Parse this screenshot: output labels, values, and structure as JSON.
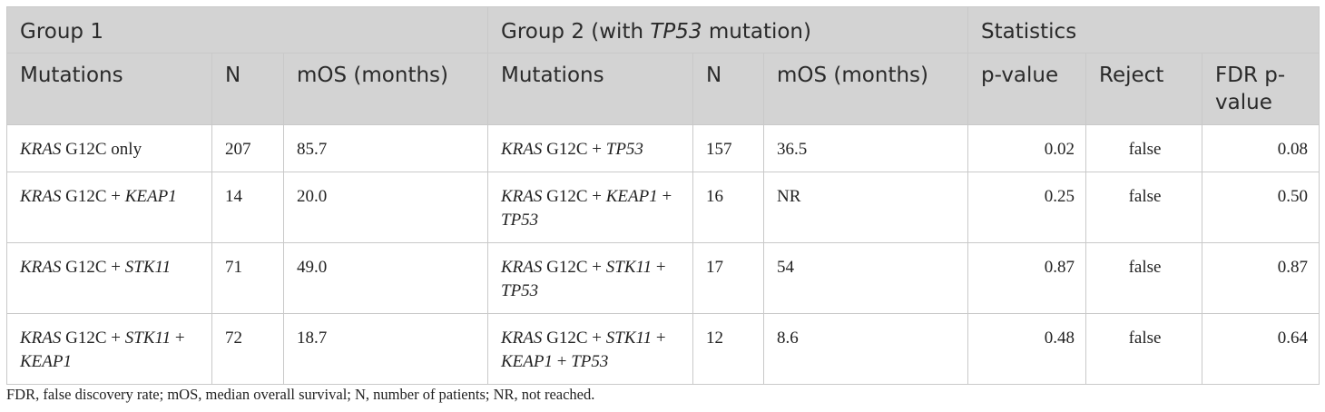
{
  "table": {
    "group_headers": [
      {
        "label": "Group 1",
        "italic_part": "",
        "suffix": ""
      },
      {
        "label": "Group 2 (with ",
        "italic_part": "TP53",
        "suffix": " mutation)"
      },
      {
        "label": "Statistics",
        "italic_part": "",
        "suffix": ""
      }
    ],
    "columns": [
      "Mutations",
      "N",
      "mOS (months)",
      "Mutations",
      "N",
      "mOS (months)",
      "p-value",
      "Reject",
      "FDR p-value"
    ],
    "rows": [
      {
        "g1_parts": [
          {
            "t": "KRAS",
            "i": true
          },
          {
            "t": " G12C only",
            "i": false
          }
        ],
        "g1_n": "207",
        "g1_mos": "85.7",
        "g2_parts": [
          {
            "t": "KRAS",
            "i": true
          },
          {
            "t": " G12C + ",
            "i": false
          },
          {
            "t": "TP53",
            "i": true
          }
        ],
        "g2_n": "157",
        "g2_mos": "36.5",
        "p": "0.02",
        "reject": "false",
        "fdr": "0.08"
      },
      {
        "g1_parts": [
          {
            "t": "KRAS",
            "i": true
          },
          {
            "t": " G12C + ",
            "i": false
          },
          {
            "t": "KEAP1",
            "i": true
          }
        ],
        "g1_n": "14",
        "g1_mos": "20.0",
        "g2_parts": [
          {
            "t": "KRAS",
            "i": true
          },
          {
            "t": " G12C + ",
            "i": false
          },
          {
            "t": "KEAP1",
            "i": true
          },
          {
            "t": " + ",
            "i": false
          },
          {
            "t": "TP53",
            "i": true
          }
        ],
        "g2_n": "16",
        "g2_mos": "NR",
        "p": "0.25",
        "reject": "false",
        "fdr": "0.50"
      },
      {
        "g1_parts": [
          {
            "t": "KRAS",
            "i": true
          },
          {
            "t": " G12C + ",
            "i": false
          },
          {
            "t": "STK11",
            "i": true
          }
        ],
        "g1_n": "71",
        "g1_mos": "49.0",
        "g2_parts": [
          {
            "t": "KRAS",
            "i": true
          },
          {
            "t": " G12C + ",
            "i": false
          },
          {
            "t": "STK11",
            "i": true
          },
          {
            "t": " + ",
            "i": false
          },
          {
            "t": "TP53",
            "i": true
          }
        ],
        "g2_n": "17",
        "g2_mos": "54",
        "p": "0.87",
        "reject": "false",
        "fdr": "0.87"
      },
      {
        "g1_parts": [
          {
            "t": "KRAS",
            "i": true
          },
          {
            "t": " G12C + ",
            "i": false
          },
          {
            "t": "STK11",
            "i": true
          },
          {
            "t": " + ",
            "i": false
          },
          {
            "t": "KEAP1",
            "i": true
          }
        ],
        "g1_n": "72",
        "g1_mos": "18.7",
        "g2_parts": [
          {
            "t": "KRAS",
            "i": true
          },
          {
            "t": " G12C + ",
            "i": false
          },
          {
            "t": "STK11",
            "i": true
          },
          {
            "t": " + ",
            "i": false
          },
          {
            "t": "KEAP1",
            "i": true
          },
          {
            "t": " + ",
            "i": false
          },
          {
            "t": "TP53",
            "i": true
          }
        ],
        "g2_n": "12",
        "g2_mos": "8.6",
        "p": "0.48",
        "reject": "false",
        "fdr": "0.64"
      }
    ]
  },
  "footnote": "FDR, false discovery rate; mOS, median overall survival; N, number of patients; NR, not reached."
}
